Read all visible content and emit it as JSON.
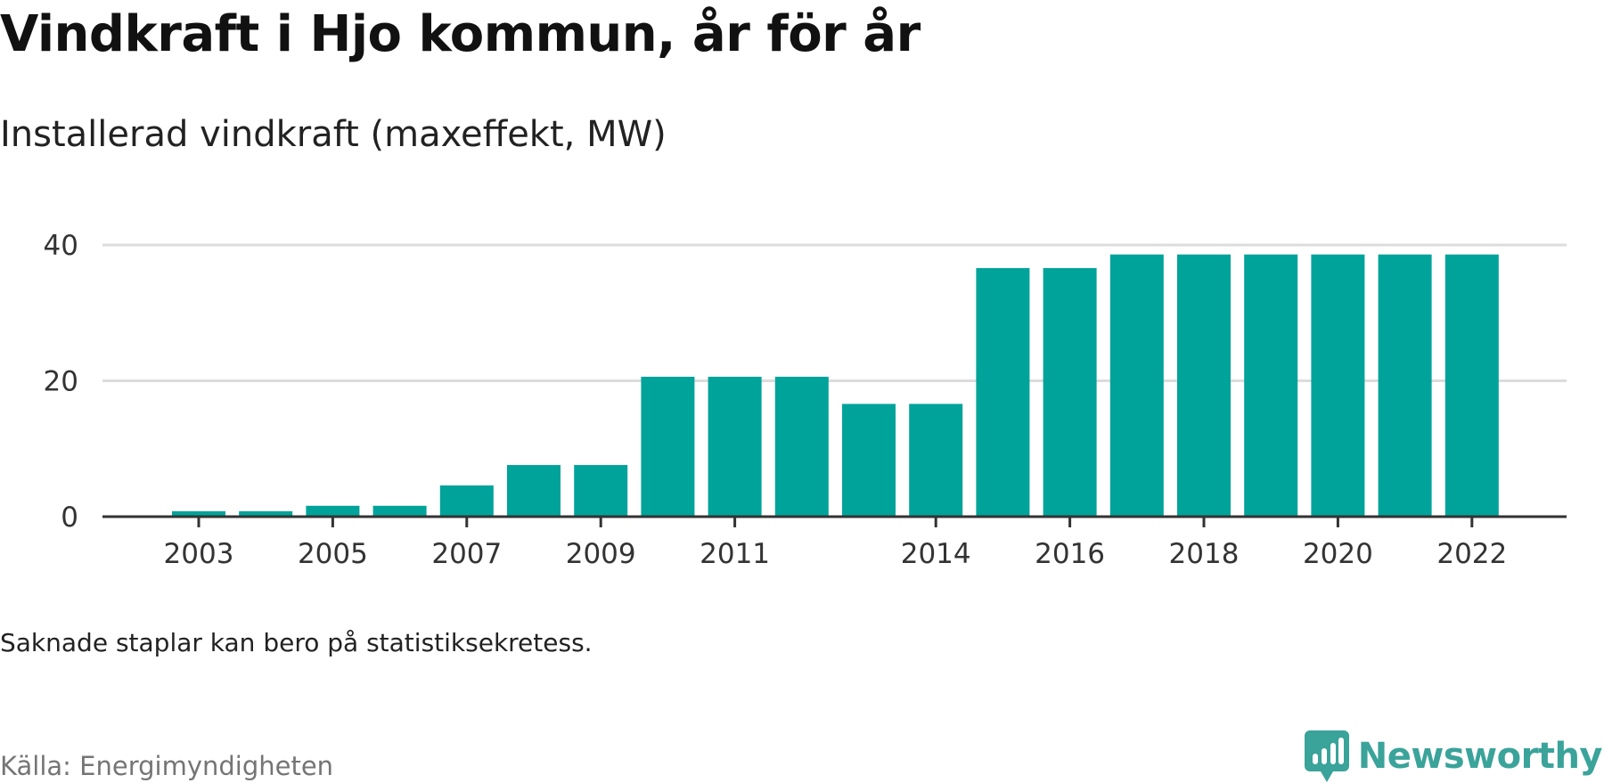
{
  "title": "Vindkraft i Hjo kommun, år för år",
  "subtitle": "Installerad vindkraft (maxeffekt, MW)",
  "note": "Saknade staplar kan bero på statistiksekretess.",
  "source": "Källa: Energimyndigheten",
  "brand": {
    "name": "Newsworthy",
    "icon": "newsworthy-logo-icon",
    "color": "#3aa39a"
  },
  "colors": {
    "bar": "#00a39a",
    "grid": "#dcdcdc",
    "axis": "#333333"
  },
  "chart_data": {
    "type": "bar",
    "categories": [
      2003,
      2004,
      2005,
      2006,
      2007,
      2008,
      2009,
      2010,
      2011,
      2012,
      2013,
      2014,
      2015,
      2016,
      2017,
      2018,
      2019,
      2020,
      2021,
      2022
    ],
    "values": [
      0.8,
      0.8,
      1.6,
      1.6,
      4.6,
      7.6,
      7.6,
      20.6,
      20.6,
      20.6,
      16.6,
      16.6,
      36.6,
      36.6,
      38.6,
      38.6,
      38.6,
      38.6,
      38.6,
      38.6
    ],
    "x_tick_labels": [
      "2003",
      "2005",
      "2007",
      "2009",
      "2011",
      "2014",
      "2016",
      "2018",
      "2020",
      "2022"
    ],
    "y_ticks": [
      0,
      20,
      40
    ],
    "ylim": [
      0,
      40
    ],
    "xlabel": "",
    "ylabel": "",
    "grid": true,
    "legend": "none"
  }
}
